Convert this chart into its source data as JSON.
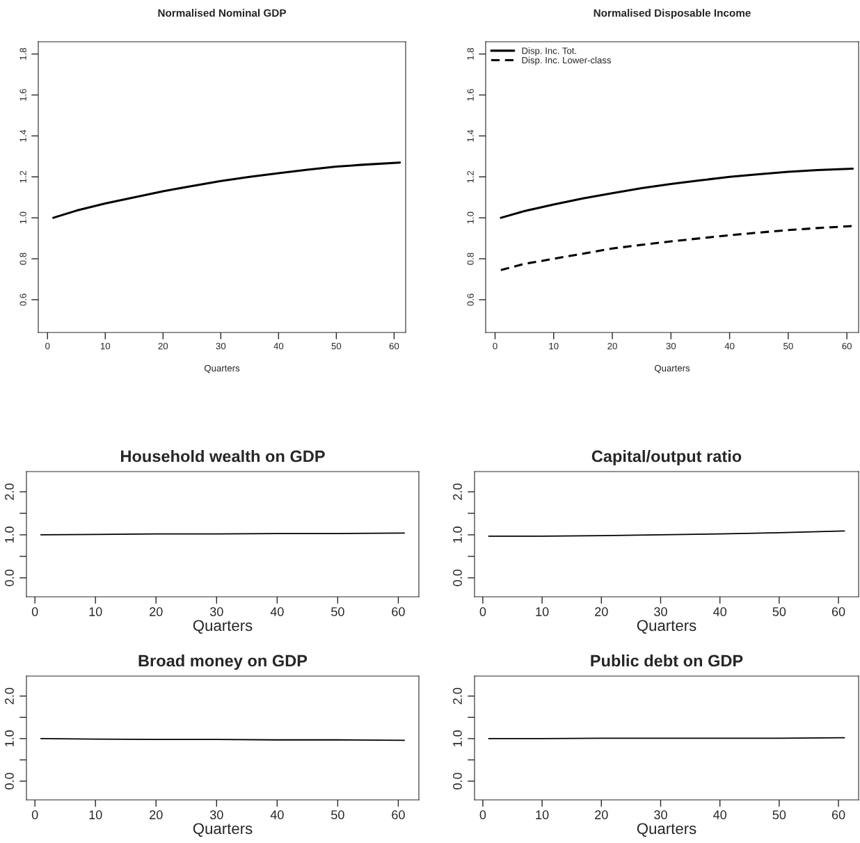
{
  "chart_data": [
    {
      "type": "line",
      "title": "Normalised Nominal GDP",
      "xlabel": "Quarters",
      "xlim": [
        -1.6,
        62.0
      ],
      "ylim": [
        0.44,
        1.86
      ],
      "xticks": [
        0,
        10,
        20,
        30,
        40,
        50,
        60
      ],
      "yticks": [
        {
          "value": 0.6,
          "label": "0.6"
        },
        {
          "value": 0.8,
          "label": "0.8"
        },
        {
          "value": 1,
          "label": "1.0"
        },
        {
          "value": 1.2,
          "label": "1.2"
        },
        {
          "value": 1.4,
          "label": "1.4"
        },
        {
          "value": 1.6,
          "label": "1.6"
        },
        {
          "value": 1.8,
          "label": "1.8"
        }
      ],
      "grid": false,
      "legend": false,
      "series": [
        {
          "color": "#000000",
          "line_style": "solid",
          "x": [
            1,
            5,
            10,
            15,
            20,
            25,
            30,
            35,
            40,
            45,
            50,
            55,
            61
          ],
          "values": [
            1.0,
            1.035,
            1.07,
            1.1,
            1.13,
            1.155,
            1.18,
            1.2,
            1.218,
            1.235,
            1.25,
            1.26,
            1.27
          ]
        }
      ]
    },
    {
      "type": "line",
      "title": "Normalised Disposable Income",
      "xlabel": "Quarters",
      "xlim": [
        -1.6,
        62.0
      ],
      "ylim": [
        0.44,
        1.86
      ],
      "xticks": [
        0,
        10,
        20,
        30,
        40,
        50,
        60
      ],
      "yticks": [
        {
          "value": 0.6,
          "label": "0.6"
        },
        {
          "value": 0.8,
          "label": "0.8"
        },
        {
          "value": 1,
          "label": "1.0"
        },
        {
          "value": 1.2,
          "label": "1.2"
        },
        {
          "value": 1.4,
          "label": "1.4"
        },
        {
          "value": 1.6,
          "label": "1.6"
        },
        {
          "value": 1.8,
          "label": "1.8"
        }
      ],
      "grid": false,
      "legend": "top left",
      "series": [
        {
          "name": "Disp. Inc. Tot.",
          "color": "#000000",
          "line_style": "solid",
          "x": [
            1,
            5,
            10,
            15,
            20,
            25,
            30,
            35,
            40,
            45,
            50,
            55,
            61
          ],
          "values": [
            1.0,
            1.033,
            1.065,
            1.095,
            1.12,
            1.145,
            1.165,
            1.183,
            1.2,
            1.213,
            1.225,
            1.233,
            1.24
          ]
        },
        {
          "name": "Disp. Inc. Lower-class",
          "color": "#000000",
          "line_style": "dashed",
          "x": [
            1,
            5,
            10,
            15,
            20,
            25,
            30,
            35,
            40,
            45,
            50,
            55,
            61
          ],
          "values": [
            0.745,
            0.775,
            0.8,
            0.825,
            0.85,
            0.868,
            0.885,
            0.9,
            0.915,
            0.928,
            0.94,
            0.95,
            0.96
          ]
        }
      ]
    },
    {
      "type": "line",
      "title": "Household wealth on GDP",
      "xlabel": "Quarters",
      "xlim": [
        -1.4,
        63.4
      ],
      "ylim": [
        -0.44,
        2.47
      ],
      "xticks": [
        0,
        10,
        20,
        30,
        40,
        50,
        60
      ],
      "yticks": [
        {
          "value": 0,
          "label": "0.0"
        },
        {
          "value": 0.5,
          "label": null
        },
        {
          "value": 1,
          "label": "1.0"
        },
        {
          "value": 1.5,
          "label": null
        },
        {
          "value": 2,
          "label": "2.0"
        }
      ],
      "grid": false,
      "legend": false,
      "series": [
        {
          "color": "#000000",
          "line_style": "solid",
          "x": [
            1,
            10,
            20,
            30,
            40,
            50,
            61
          ],
          "values": [
            1.0,
            1.01,
            1.02,
            1.02,
            1.03,
            1.03,
            1.04
          ]
        }
      ]
    },
    {
      "type": "line",
      "title": "Capital/output ratio",
      "xlabel": "Quarters",
      "xlim": [
        -1.4,
        63.4
      ],
      "ylim": [
        -0.44,
        2.47
      ],
      "xticks": [
        0,
        10,
        20,
        30,
        40,
        50,
        60
      ],
      "yticks": [
        {
          "value": 0,
          "label": "0.0"
        },
        {
          "value": 0.5,
          "label": null
        },
        {
          "value": 1,
          "label": "1.0"
        },
        {
          "value": 1.5,
          "label": null
        },
        {
          "value": 2,
          "label": "2.0"
        }
      ],
      "grid": false,
      "legend": false,
      "series": [
        {
          "color": "#000000",
          "line_style": "solid",
          "x": [
            1,
            10,
            20,
            30,
            40,
            50,
            61
          ],
          "values": [
            0.97,
            0.97,
            0.98,
            1.0,
            1.02,
            1.05,
            1.09
          ]
        }
      ]
    },
    {
      "type": "line",
      "title": "Broad money on GDP",
      "xlabel": "Quarters",
      "xlim": [
        -1.4,
        63.4
      ],
      "ylim": [
        -0.44,
        2.47
      ],
      "xticks": [
        0,
        10,
        20,
        30,
        40,
        50,
        60
      ],
      "yticks": [
        {
          "value": 0,
          "label": "0.0"
        },
        {
          "value": 0.5,
          "label": null
        },
        {
          "value": 1,
          "label": "1.0"
        },
        {
          "value": 1.5,
          "label": null
        },
        {
          "value": 2,
          "label": "2.0"
        }
      ],
      "grid": false,
      "legend": false,
      "series": [
        {
          "color": "#000000",
          "line_style": "solid",
          "x": [
            1,
            10,
            20,
            30,
            40,
            50,
            61
          ],
          "values": [
            1.0,
            0.99,
            0.98,
            0.98,
            0.97,
            0.97,
            0.96
          ]
        }
      ]
    },
    {
      "type": "line",
      "title": "Public debt on GDP",
      "xlabel": "Quarters",
      "xlim": [
        -1.4,
        63.4
      ],
      "ylim": [
        -0.44,
        2.47
      ],
      "xticks": [
        0,
        10,
        20,
        30,
        40,
        50,
        60
      ],
      "yticks": [
        {
          "value": 0,
          "label": "0.0"
        },
        {
          "value": 0.5,
          "label": null
        },
        {
          "value": 1,
          "label": "1.0"
        },
        {
          "value": 1.5,
          "label": null
        },
        {
          "value": 2,
          "label": "2.0"
        }
      ],
      "grid": false,
      "legend": false,
      "series": [
        {
          "color": "#000000",
          "line_style": "solid",
          "x": [
            1,
            10,
            20,
            30,
            40,
            50,
            61
          ],
          "values": [
            1.0,
            1.0,
            1.01,
            1.01,
            1.01,
            1.01,
            1.02
          ]
        }
      ]
    }
  ]
}
